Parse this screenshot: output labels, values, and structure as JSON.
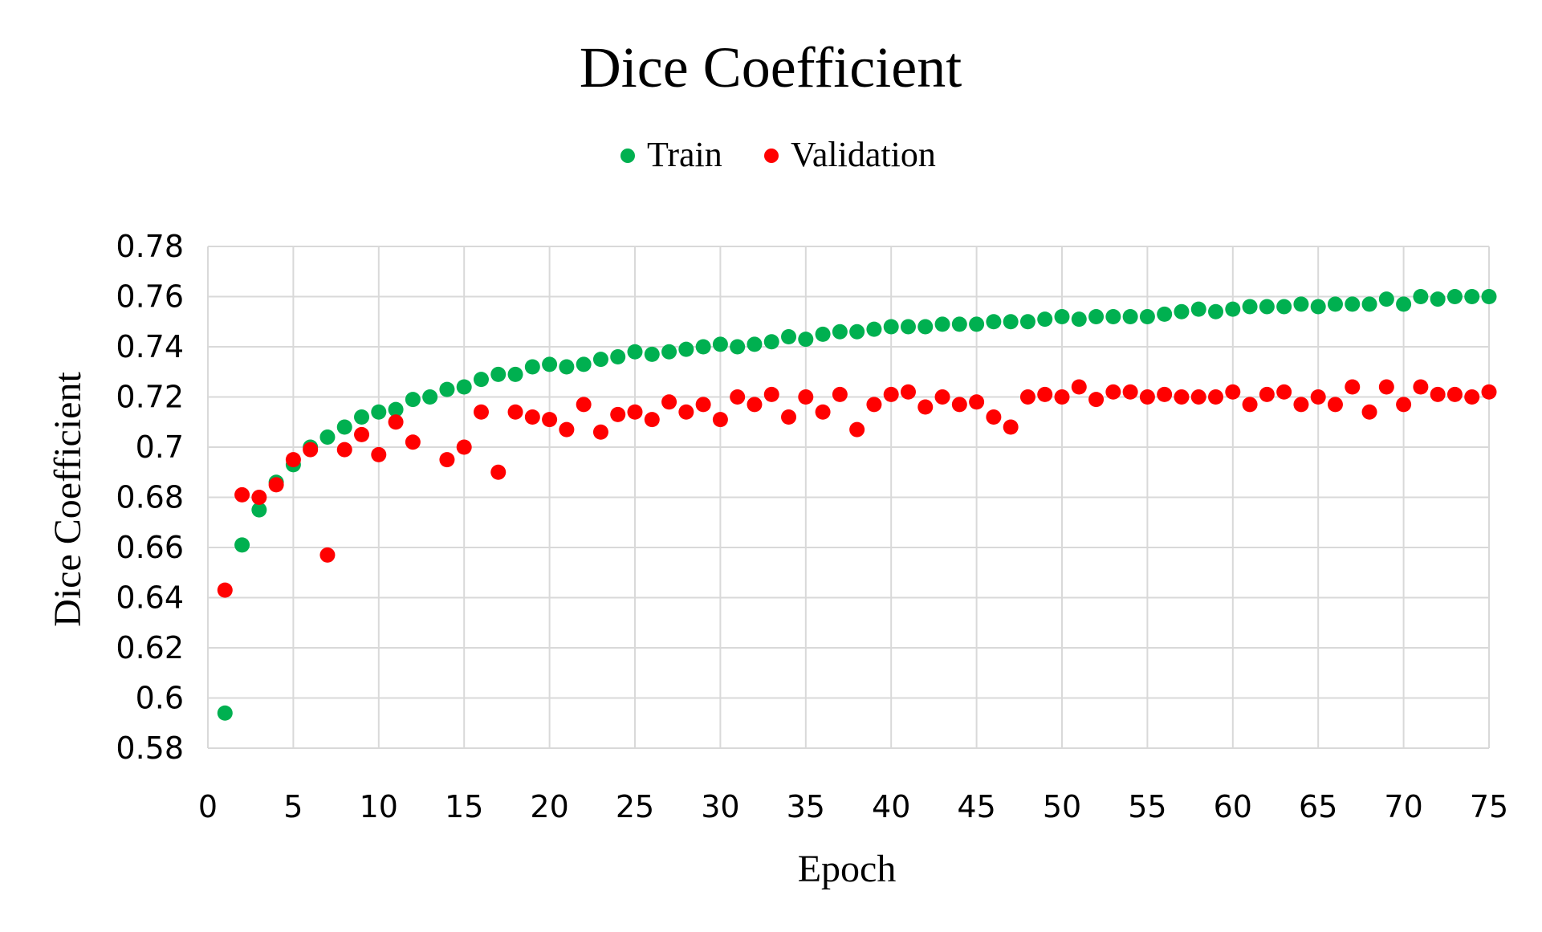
{
  "chart_data": {
    "type": "scatter",
    "title": "Dice Coefficient",
    "xlabel": "Epoch",
    "ylabel": "Dice Coefficient",
    "xlim": [
      0,
      75
    ],
    "ylim": [
      0.58,
      0.78
    ],
    "xticks": [
      0,
      5,
      10,
      15,
      20,
      25,
      30,
      35,
      40,
      45,
      50,
      55,
      60,
      65,
      70,
      75
    ],
    "yticks": [
      0.58,
      0.6,
      0.62,
      0.64,
      0.66,
      0.68,
      0.7,
      0.72,
      0.74,
      0.76,
      0.78
    ],
    "ytick_labels": [
      "0.58",
      "0.6",
      "0.62",
      "0.64",
      "0.66",
      "0.68",
      "0.7",
      "0.72",
      "0.74",
      "0.76",
      "0.78"
    ],
    "grid": "both",
    "legend_position": "top",
    "series": [
      {
        "name": "Train",
        "color": "#00b050",
        "x": [
          1,
          2,
          3,
          4,
          5,
          6,
          7,
          8,
          9,
          10,
          11,
          12,
          13,
          14,
          15,
          16,
          17,
          18,
          19,
          20,
          21,
          22,
          23,
          24,
          25,
          26,
          27,
          28,
          29,
          30,
          31,
          32,
          33,
          34,
          35,
          36,
          37,
          38,
          39,
          40,
          41,
          42,
          43,
          44,
          45,
          46,
          47,
          48,
          49,
          50,
          51,
          52,
          53,
          54,
          55,
          56,
          57,
          58,
          59,
          60,
          61,
          62,
          63,
          64,
          65,
          66,
          67,
          68,
          69,
          70,
          71,
          72,
          73,
          74,
          75
        ],
        "y": [
          0.594,
          0.661,
          0.675,
          0.686,
          0.693,
          0.7,
          0.704,
          0.708,
          0.712,
          0.714,
          0.715,
          0.719,
          0.72,
          0.723,
          0.724,
          0.727,
          0.729,
          0.729,
          0.732,
          0.733,
          0.732,
          0.733,
          0.735,
          0.736,
          0.738,
          0.737,
          0.738,
          0.739,
          0.74,
          0.741,
          0.74,
          0.741,
          0.742,
          0.744,
          0.743,
          0.745,
          0.746,
          0.746,
          0.747,
          0.748,
          0.748,
          0.748,
          0.749,
          0.749,
          0.749,
          0.75,
          0.75,
          0.75,
          0.751,
          0.752,
          0.751,
          0.752,
          0.752,
          0.752,
          0.752,
          0.753,
          0.754,
          0.755,
          0.754,
          0.755,
          0.756,
          0.756,
          0.756,
          0.757,
          0.756,
          0.757,
          0.757,
          0.757,
          0.759,
          0.757,
          0.76,
          0.759,
          0.76,
          0.76,
          0.76
        ]
      },
      {
        "name": "Validation",
        "color": "#ff0000",
        "x": [
          1,
          2,
          3,
          4,
          5,
          6,
          7,
          8,
          9,
          10,
          11,
          12,
          14,
          15,
          16,
          17,
          18,
          19,
          20,
          21,
          22,
          23,
          24,
          25,
          26,
          27,
          28,
          29,
          30,
          31,
          32,
          33,
          34,
          35,
          36,
          37,
          38,
          39,
          40,
          41,
          42,
          43,
          44,
          45,
          46,
          47,
          48,
          49,
          50,
          51,
          52,
          53,
          54,
          55,
          56,
          57,
          58,
          59,
          60,
          61,
          62,
          63,
          64,
          65,
          66,
          67,
          68,
          69,
          70,
          71,
          72,
          73,
          74,
          75
        ],
        "y": [
          0.643,
          0.681,
          0.68,
          0.685,
          0.695,
          0.699,
          0.657,
          0.699,
          0.705,
          0.697,
          0.71,
          0.702,
          0.695,
          0.7,
          0.714,
          0.69,
          0.714,
          0.712,
          0.711,
          0.707,
          0.717,
          0.706,
          0.713,
          0.714,
          0.711,
          0.718,
          0.714,
          0.717,
          0.711,
          0.72,
          0.717,
          0.721,
          0.712,
          0.72,
          0.714,
          0.721,
          0.707,
          0.717,
          0.721,
          0.722,
          0.716,
          0.72,
          0.717,
          0.718,
          0.712,
          0.708,
          0.72,
          0.721,
          0.72,
          0.724,
          0.719,
          0.722,
          0.722,
          0.72,
          0.721,
          0.72,
          0.72,
          0.72,
          0.722,
          0.717,
          0.721,
          0.722,
          0.717,
          0.72,
          0.717,
          0.724,
          0.714,
          0.724,
          0.717,
          0.724,
          0.721,
          0.721,
          0.72,
          0.722
        ]
      }
    ]
  }
}
